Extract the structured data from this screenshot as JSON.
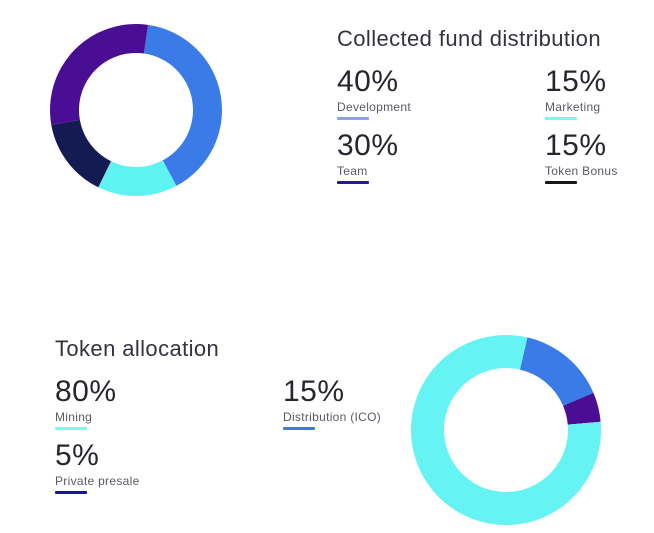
{
  "page": {
    "background": "#ffffff"
  },
  "sections": [
    {
      "title": "Collected fund distribution",
      "stats": [
        {
          "percent": "40%",
          "label": "Development",
          "underline_color": "#8AA2E8"
        },
        {
          "percent": "15%",
          "label": "Marketing",
          "underline_color": "#7DF5F2"
        },
        {
          "percent": "30%",
          "label": "Team",
          "underline_color": "#1C1C9C"
        },
        {
          "percent": "15%",
          "label": "Token Bonus",
          "underline_color": "#17171C"
        }
      ]
    },
    {
      "title": "Token allocation",
      "stats": [
        {
          "percent": "80%",
          "label": "Mining",
          "underline_color": "#80F7F2"
        },
        {
          "percent": "15%",
          "label": "Distribution (ICO)",
          "underline_color": "#3C7CE0"
        },
        {
          "percent": "5%",
          "label": "Private presale",
          "underline_color": "#16169C"
        }
      ]
    }
  ],
  "chart_data": [
    {
      "type": "pie",
      "variant": "donut",
      "title": "Collected fund distribution",
      "legend_position": "right-text-block",
      "start_angle_deg": 8,
      "segments": [
        {
          "label": "Development",
          "value": 40,
          "color": "#3A7BE8"
        },
        {
          "label": "Marketing",
          "value": 15,
          "color": "#5EF2F3"
        },
        {
          "label": "Token Bonus",
          "value": 15,
          "color": "#141A52"
        },
        {
          "label": "Team",
          "value": 30,
          "color": "#4A0E94"
        }
      ]
    },
    {
      "type": "pie",
      "variant": "donut",
      "title": "Token allocation",
      "legend_position": "left-text-block",
      "start_angle_deg": 13,
      "segments": [
        {
          "label": "Distribution (ICO)",
          "value": 15,
          "color": "#3A7BE8"
        },
        {
          "label": "Private presale",
          "value": 5,
          "color": "#4A0E94"
        },
        {
          "label": "Mining",
          "value": 80,
          "color": "#66F3F4"
        }
      ]
    }
  ]
}
